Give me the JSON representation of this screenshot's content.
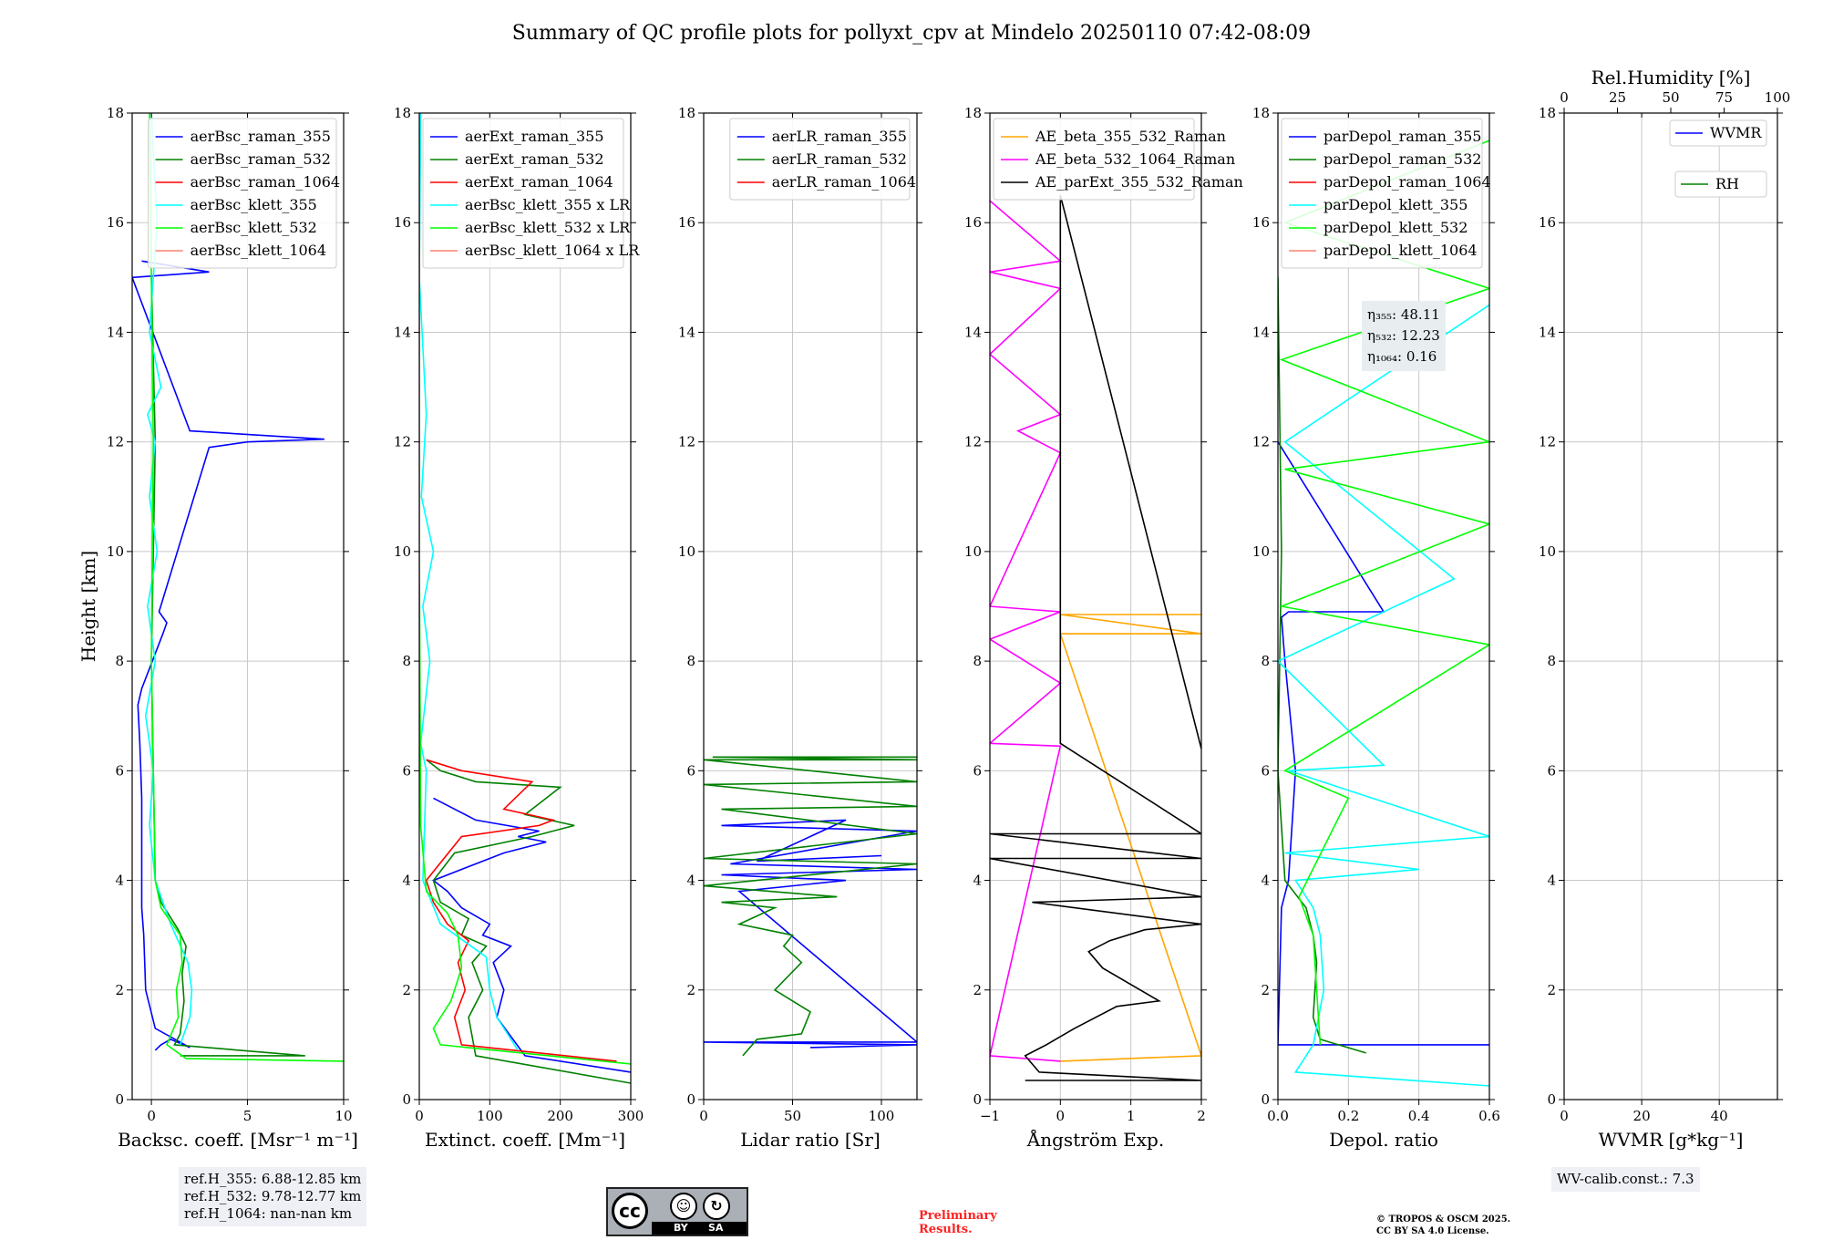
{
  "title": "Summary of QC profile plots for pollyxt_cpv at Mindelo 20250110 07:42-08:09",
  "colors": {
    "blue": "#0000ff",
    "green": "#008000",
    "red": "#ff0000",
    "cyan": "#00ffff",
    "lime": "#00ff00",
    "salmon": "#fa8072",
    "orange": "#ffa500",
    "magenta": "#ff00ff",
    "black": "#000000"
  },
  "chart_data": [
    {
      "type": "line",
      "panel": "backscatter",
      "xlabel": "Backsc. coeff. [Msr⁻¹ m⁻¹]",
      "ylabel": "Height [km]",
      "xlim": [
        -1,
        10
      ],
      "ylim": [
        0,
        18
      ],
      "xticks": [
        0,
        5,
        10
      ],
      "yticks": [
        0,
        2,
        4,
        6,
        8,
        10,
        12,
        14,
        16,
        18
      ],
      "grid": true,
      "legend": "upper-right",
      "series": [
        {
          "name": "aerBsc_raman_355",
          "color": "blue",
          "x": [
            0.2,
            0.5,
            1.0,
            2.0,
            0.2,
            -0.3,
            -0.4,
            -0.5,
            -0.5,
            -0.6,
            -0.7,
            -0.5,
            0.6,
            0.8,
            0.4,
            3,
            5,
            9,
            2,
            -1,
            3,
            -0.5
          ],
          "y": [
            0.9,
            1.0,
            1.1,
            0.95,
            1.3,
            2.0,
            3.0,
            3.5,
            5.5,
            6.5,
            7.2,
            7.5,
            8.5,
            8.7,
            8.9,
            11.9,
            12.0,
            12.05,
            12.2,
            15.0,
            15.1,
            15.3
          ]
        },
        {
          "name": "aerBsc_raman_532",
          "color": "green",
          "x": [
            1.5,
            8,
            1.2,
            1.5,
            1.7,
            1.6,
            1.8,
            1.4,
            0.5,
            0.2,
            0.1,
            0.0,
            0.1,
            0.2,
            0.0
          ],
          "y": [
            0.8,
            0.8,
            1.0,
            1.2,
            1.8,
            2.3,
            2.8,
            3.1,
            3.6,
            4.0,
            6.0,
            8.0,
            10.0,
            12.0,
            15.0
          ]
        },
        {
          "name": "aerBsc_raman_1064",
          "color": "red",
          "x": [],
          "y": []
        },
        {
          "name": "aerBsc_klett_355",
          "color": "cyan",
          "x": [
            1.5,
            2.0,
            2.1,
            1.9,
            1.0,
            0.2,
            -0.1,
            0.1,
            -0.3,
            0.2,
            -0.2,
            0.3,
            -0.1,
            0.2,
            -0.2,
            0.5,
            -0.1,
            0.3,
            0.0
          ],
          "y": [
            1.0,
            1.5,
            2.0,
            2.5,
            3.2,
            4.0,
            5.0,
            6.0,
            7.0,
            8.0,
            9.0,
            10.0,
            11.0,
            12.0,
            12.5,
            13.0,
            14.0,
            16.0,
            18.0
          ]
        },
        {
          "name": "aerBsc_klett_532",
          "color": "lime",
          "x": [
            10,
            1.8,
            0.8,
            1.4,
            1.3,
            1.6,
            1.5,
            0.5,
            0.2,
            0.1,
            0.0,
            0.1,
            0.0,
            -0.1
          ],
          "y": [
            0.7,
            0.75,
            1.0,
            1.5,
            2.0,
            2.5,
            3.0,
            3.5,
            4.0,
            6.0,
            8.0,
            12.0,
            15.0,
            18.0
          ]
        },
        {
          "name": "aerBsc_klett_1064",
          "color": "salmon",
          "x": [],
          "y": []
        }
      ],
      "annotations": [
        "ref.H_355: 6.88-12.85 km",
        "ref.H_532: 9.78-12.77 km",
        "ref.H_1064: nan-nan km"
      ]
    },
    {
      "type": "line",
      "panel": "extinction",
      "xlabel": "Extinct. coeff. [Mm⁻¹]",
      "xlim": [
        0,
        300
      ],
      "ylim": [
        0,
        18
      ],
      "xticks": [
        0,
        100,
        200,
        300
      ],
      "yticks": [
        0,
        2,
        4,
        6,
        8,
        10,
        12,
        14,
        16,
        18
      ],
      "grid": true,
      "legend": "upper-right",
      "series": [
        {
          "name": "aerExt_raman_355",
          "color": "blue",
          "x": [
            300,
            150,
            110,
            120,
            105,
            130,
            90,
            100,
            60,
            40,
            20,
            60,
            120,
            180,
            140,
            170,
            80,
            20
          ],
          "y": [
            0.5,
            0.8,
            1.5,
            2.0,
            2.5,
            2.8,
            3.0,
            3.2,
            3.5,
            3.8,
            4.0,
            4.2,
            4.5,
            4.7,
            4.8,
            4.9,
            5.1,
            5.5
          ]
        },
        {
          "name": "aerExt_raman_532",
          "color": "green",
          "x": [
            300,
            80,
            70,
            90,
            75,
            95,
            60,
            70,
            30,
            20,
            50,
            160,
            220,
            150,
            200,
            80,
            30,
            10
          ],
          "y": [
            0.3,
            0.8,
            1.5,
            2.0,
            2.5,
            2.8,
            3.0,
            3.3,
            3.6,
            4.0,
            4.5,
            4.8,
            5.0,
            5.2,
            5.7,
            5.8,
            6.0,
            6.2
          ]
        },
        {
          "name": "aerExt_raman_1064",
          "color": "red",
          "x": [
            280,
            60,
            50,
            65,
            55,
            70,
            40,
            20,
            10,
            60,
            170,
            190,
            120,
            160,
            60,
            10
          ],
          "y": [
            0.7,
            1.0,
            1.5,
            2.0,
            2.5,
            2.9,
            3.2,
            3.6,
            4.0,
            4.8,
            5.0,
            5.1,
            5.3,
            5.8,
            6.0,
            6.2
          ]
        },
        {
          "name": "aerBsc_klett_355 x LR",
          "color": "cyan",
          "x": [
            140,
            110,
            100,
            95,
            30,
            5,
            10,
            2,
            15,
            5,
            20,
            3,
            10,
            0,
            2
          ],
          "y": [
            0.9,
            1.5,
            2.0,
            2.6,
            3.2,
            4.0,
            6.0,
            6.5,
            8.0,
            9.0,
            10.0,
            11.0,
            12.5,
            15.0,
            18.0
          ]
        },
        {
          "name": "aerBsc_klett_532 x LR",
          "color": "lime",
          "x": [
            300,
            30,
            20,
            45,
            60,
            55,
            40,
            10,
            2,
            0,
            0
          ],
          "y": [
            0.65,
            1.0,
            1.3,
            1.8,
            2.4,
            3.0,
            3.4,
            3.8,
            5.0,
            10.0,
            18.0
          ]
        },
        {
          "name": "aerBsc_klett_1064 x LR",
          "color": "salmon",
          "x": [],
          "y": []
        }
      ]
    },
    {
      "type": "line",
      "panel": "lidar-ratio",
      "xlabel": "Lidar ratio [Sr]",
      "xlim": [
        0,
        120
      ],
      "ylim": [
        0,
        18
      ],
      "xticks": [
        0,
        50,
        100
      ],
      "yticks": [
        0,
        2,
        4,
        6,
        8,
        10,
        12,
        14,
        16,
        18
      ],
      "grid": true,
      "legend": "upper-right",
      "series": [
        {
          "name": "aerLR_raman_355",
          "color": "blue",
          "x": [
            60,
            120,
            0,
            120,
            20,
            80,
            10,
            120,
            15,
            120,
            10,
            80,
            30,
            100
          ],
          "y": [
            0.95,
            1.0,
            1.05,
            1.05,
            3.8,
            4.0,
            4.1,
            4.2,
            4.3,
            4.9,
            5.0,
            5.1,
            4.35,
            4.45
          ]
        },
        {
          "name": "aerLR_raman_532",
          "color": "green",
          "x": [
            22,
            30,
            55,
            60,
            40,
            55,
            45,
            50,
            20,
            40,
            10,
            75,
            0,
            120,
            0,
            120,
            10,
            120,
            0,
            120,
            0,
            120,
            5,
            120
          ],
          "y": [
            0.8,
            1.1,
            1.2,
            1.6,
            2.0,
            2.5,
            2.8,
            3.0,
            3.2,
            3.5,
            3.6,
            3.7,
            3.9,
            4.3,
            4.4,
            4.85,
            5.3,
            5.35,
            5.75,
            5.8,
            6.2,
            6.2,
            6.25,
            6.25
          ]
        },
        {
          "name": "aerLR_raman_1064",
          "color": "red",
          "x": [],
          "y": []
        }
      ]
    },
    {
      "type": "line",
      "panel": "angstrom",
      "xlabel": "Ångström Exp.",
      "xlim": [
        -1,
        2
      ],
      "ylim": [
        0,
        18
      ],
      "xticks": [
        -1,
        0,
        1,
        2
      ],
      "yticks": [
        0,
        2,
        4,
        6,
        8,
        10,
        12,
        14,
        16,
        18
      ],
      "grid": true,
      "legend": "upper-right",
      "series": [
        {
          "name": "AE_beta_355_532_Raman",
          "color": "orange",
          "x": [
            0,
            2,
            0,
            2,
            0,
            2
          ],
          "y": [
            0.7,
            0.8,
            8.5,
            8.5,
            8.85,
            8.85
          ]
        },
        {
          "name": "AE_beta_532_1064_Raman",
          "color": "magenta",
          "x": [
            0,
            -1,
            0,
            -1,
            0,
            -0.5,
            -1,
            0,
            -1,
            0,
            -0.6,
            0,
            -1,
            0,
            -1,
            0,
            -1
          ],
          "y": [
            0.7,
            0.8,
            6.45,
            6.5,
            7.6,
            8.0,
            8.4,
            8.9,
            9.0,
            11.8,
            12.2,
            12.5,
            13.6,
            14.8,
            15.1,
            15.3,
            16.4
          ]
        },
        {
          "name": "AE_parExt_355_532_Raman",
          "color": "black",
          "x": [
            -0.5,
            2,
            -0.3,
            -0.5,
            -0.2,
            0.2,
            0.8,
            1.4,
            1.0,
            0.6,
            0.4,
            0.7,
            1.2,
            2.0,
            -0.4,
            2.0,
            -1,
            2,
            -1,
            2,
            0,
            0,
            2
          ],
          "y": [
            0.35,
            0.35,
            0.5,
            0.8,
            1.0,
            1.3,
            1.7,
            1.8,
            2.1,
            2.4,
            2.7,
            2.9,
            3.1,
            3.2,
            3.6,
            3.7,
            4.4,
            4.4,
            4.85,
            4.85,
            6.5,
            16.5,
            6.4
          ]
        }
      ]
    },
    {
      "type": "line",
      "panel": "depolarization",
      "xlabel": "Depol. ratio",
      "xlim": [
        0,
        0.6
      ],
      "ylim": [
        0,
        18
      ],
      "xticks": [
        0.0,
        0.2,
        0.4,
        0.6
      ],
      "yticks": [
        0,
        2,
        4,
        6,
        8,
        10,
        12,
        14,
        16,
        18
      ],
      "grid": true,
      "legend": "upper-right",
      "series": [
        {
          "name": "parDepol_raman_355",
          "color": "blue",
          "x": [
            0.6,
            0.0,
            0.01,
            0.03,
            0.05,
            0.02,
            0.01,
            0.03,
            0.3,
            0.0
          ],
          "y": [
            1.0,
            1.0,
            3.5,
            4.0,
            6.0,
            8.0,
            8.8,
            8.9,
            8.9,
            12.0
          ]
        },
        {
          "name": "parDepol_raman_532",
          "color": "green",
          "x": [
            0.25,
            0.12,
            0.1,
            0.11,
            0.1,
            0.08,
            0.02,
            0.0,
            0.01,
            0.0
          ],
          "y": [
            0.85,
            1.1,
            1.5,
            2.5,
            3.0,
            3.5,
            4.0,
            6.0,
            10.0,
            15.0
          ]
        },
        {
          "name": "parDepol_raman_1064",
          "color": "red",
          "x": [],
          "y": []
        },
        {
          "name": "parDepol_klett_355",
          "color": "cyan",
          "x": [
            0.6,
            0.05,
            0.1,
            0.13,
            0.12,
            0.1,
            0.05,
            0.4,
            0.02,
            0.6,
            0.03,
            0.3,
            0.0,
            0.5,
            0.02,
            0.6
          ],
          "y": [
            0.25,
            0.5,
            1.0,
            2.0,
            3.0,
            3.5,
            4.0,
            4.2,
            4.5,
            4.8,
            6.0,
            6.1,
            8.0,
            9.5,
            12.0,
            14.5
          ]
        },
        {
          "name": "parDepol_klett_532",
          "color": "lime",
          "x": [
            0.12,
            0.11,
            0.1,
            0.06,
            0.2,
            0.02,
            0.6,
            0.01,
            0.6,
            0.02,
            0.6,
            0.01,
            0.6,
            0.02,
            0.6
          ],
          "y": [
            1.0,
            2.0,
            3.0,
            3.7,
            5.5,
            6.0,
            8.3,
            9.0,
            10.5,
            11.5,
            12.0,
            13.5,
            14.8,
            16.0,
            17.5
          ]
        },
        {
          "name": "parDepol_klett_1064",
          "color": "salmon",
          "x": [],
          "y": []
        }
      ],
      "annotations": [
        "η₃₅₅: 48.11",
        "η₅₃₂: 12.23",
        "η₁₀₆₄: 0.16"
      ]
    },
    {
      "type": "line",
      "panel": "water-vapor",
      "xlabel": "WVMR [g*kg⁻¹]",
      "xlabel_top": "Rel.Humidity [%]",
      "xlim": [
        0,
        55
      ],
      "xlim_top": [
        0,
        100
      ],
      "ylim": [
        0,
        18
      ],
      "xticks": [
        0,
        20,
        40
      ],
      "xticks_top": [
        0,
        25,
        50,
        75,
        100
      ],
      "yticks": [
        0,
        2,
        4,
        6,
        8,
        10,
        12,
        14,
        16,
        18
      ],
      "grid": true,
      "legend": "upper-right",
      "series": [
        {
          "name": "WVMR",
          "color": "blue",
          "x": [],
          "y": []
        },
        {
          "name": "RH",
          "color": "green",
          "x": [],
          "y": []
        }
      ],
      "annotations": [
        "WV-calib.const.: 7.3"
      ]
    }
  ],
  "footer": {
    "cc_text_by": "BY",
    "cc_text_sa": "SA",
    "cc_text": "cc",
    "preliminary_1": "Preliminary",
    "preliminary_2": "Results.",
    "copyright_1": "© TROPOS & OSCM 2025.",
    "copyright_2": "CC BY SA 4.0 License."
  }
}
